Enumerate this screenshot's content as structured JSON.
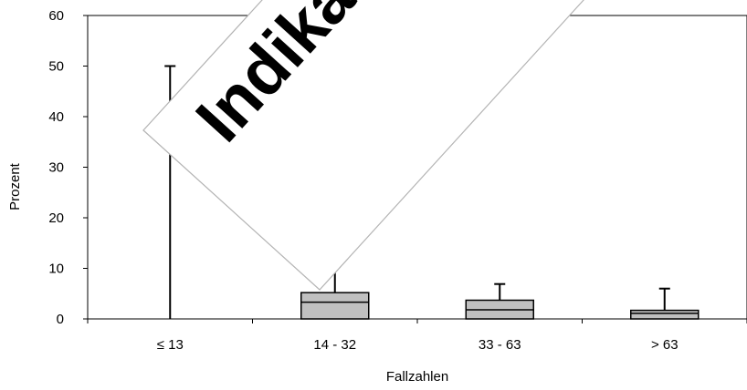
{
  "chart_data": {
    "type": "box",
    "xlabel": "Fallzahlen",
    "ylabel": "Prozent",
    "categories": [
      "≤ 13",
      "14 - 32",
      "33 - 63",
      "> 63"
    ],
    "ylim": [
      0,
      60
    ],
    "yticks": [
      0,
      10,
      20,
      30,
      40,
      50,
      60
    ],
    "grid": false,
    "legend": "none",
    "box_color": "#c0c0c0",
    "boxes": [
      {
        "category": "≤ 13",
        "min": 0,
        "q1": 0,
        "median": 0,
        "q3": 0,
        "max": 50
      },
      {
        "category": "14 - 32",
        "min": 0,
        "q1": 0,
        "median": 3.3,
        "q3": 5.2,
        "max": 10.3
      },
      {
        "category": "33 - 63",
        "min": 0,
        "q1": 0,
        "median": 1.8,
        "q3": 3.7,
        "max": 6.9
      },
      {
        "category": "> 63",
        "min": 0,
        "q1": 0,
        "median": 1.1,
        "q3": 1.7,
        "max": 6.0
      }
    ]
  },
  "watermark": {
    "text": "Indikator",
    "color": "#ff0000"
  }
}
